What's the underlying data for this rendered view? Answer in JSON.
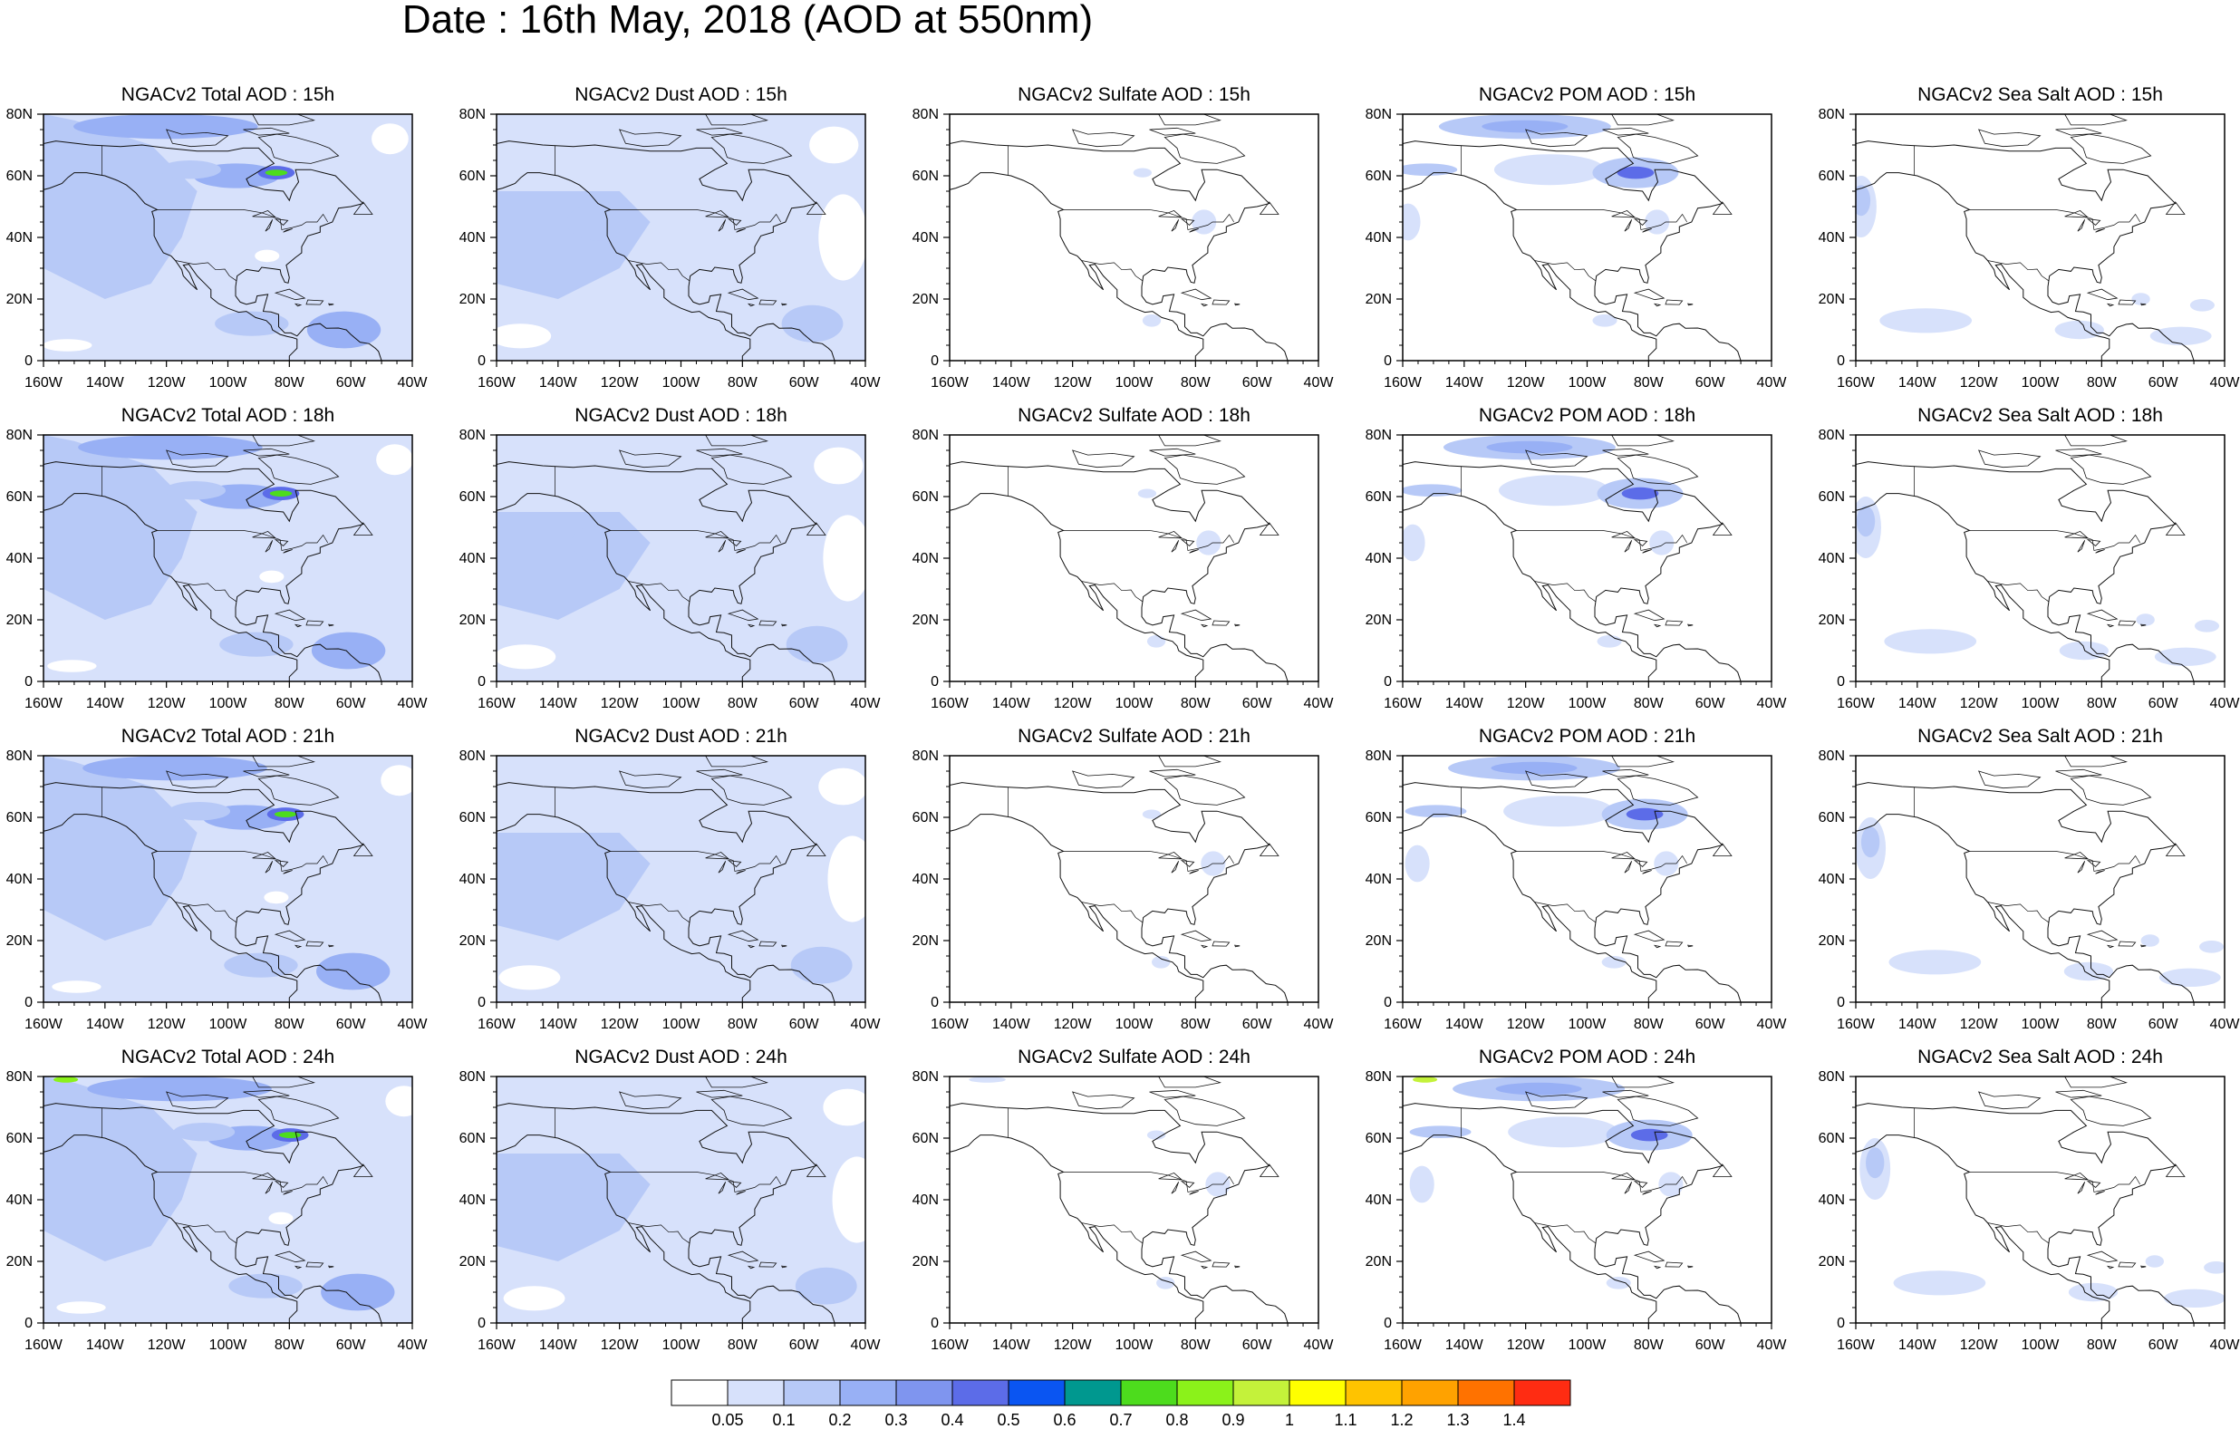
{
  "title": "Date : 16th May, 2018 (AOD at 550nm)",
  "panel_titles": [
    [
      "NGACv2 Total AOD : 15h",
      "NGACv2 Dust AOD : 15h",
      "NGACv2 Sulfate AOD : 15h",
      "NGACv2 POM AOD : 15h",
      "NGACv2 Sea Salt AOD : 15h"
    ],
    [
      "NGACv2 Total AOD : 18h",
      "NGACv2 Dust AOD : 18h",
      "NGACv2 Sulfate AOD : 18h",
      "NGACv2 POM AOD : 18h",
      "NGACv2 Sea Salt AOD : 18h"
    ],
    [
      "NGACv2 Total AOD : 21h",
      "NGACv2 Dust AOD : 21h",
      "NGACv2 Sulfate AOD : 21h",
      "NGACv2 POM AOD : 21h",
      "NGACv2 Sea Salt AOD : 21h"
    ],
    [
      "NGACv2 Total AOD : 24h",
      "NGACv2 Dust AOD : 24h",
      "NGACv2 Sulfate AOD : 24h",
      "NGACv2 POM AOD : 24h",
      "NGACv2 Sea Salt  AOD : 24h"
    ]
  ],
  "map": {
    "lon_range": [
      -160,
      -40
    ],
    "lat_range": [
      0,
      80
    ],
    "lon_tick_labels": [
      "160W",
      "140W",
      "120W",
      "100W",
      "80W",
      "60W",
      "40W"
    ],
    "lat_tick_labels": [
      "0",
      "20N",
      "40N",
      "60N",
      "80N"
    ]
  },
  "colorbar": {
    "colors": [
      "#ffffff",
      "#d7e1fb",
      "#b7c9f7",
      "#98b0f5",
      "#7f95ef",
      "#5c6ce8",
      "#0a55f2",
      "#00988f",
      "#4ddc1d",
      "#8bf21a",
      "#c4f23a",
      "#ffff00",
      "#ffc300",
      "#ffa200",
      "#ff7200",
      "#ff2c12"
    ],
    "labels": [
      "0.05",
      "0.1",
      "0.2",
      "0.3",
      "0.4",
      "0.5",
      "0.6",
      "0.7",
      "0.8",
      "0.9",
      "1",
      "1.1",
      "1.2",
      "1.3",
      "1.4"
    ]
  }
}
